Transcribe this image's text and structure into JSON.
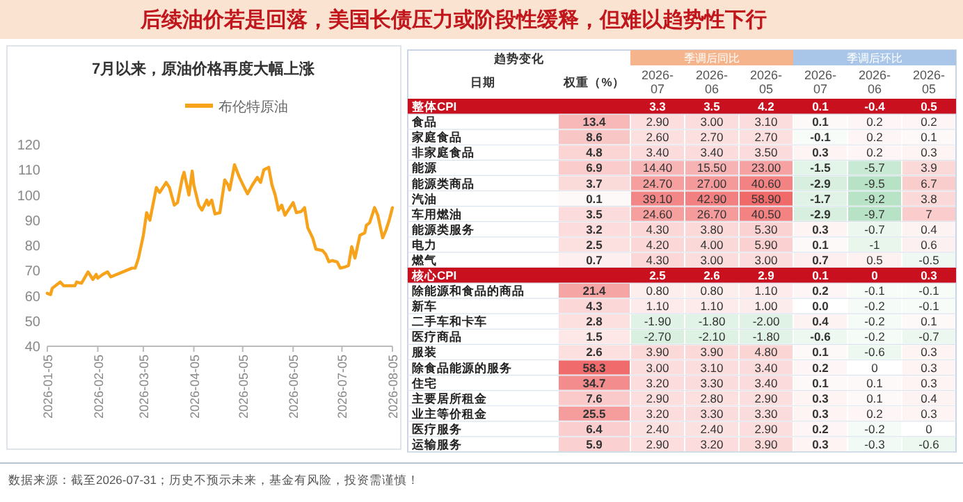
{
  "chart_data": [
    {
      "type": "line",
      "title": "后续油价若是回落，美国长债压力或阶段性缓释，但难以趋势性下行",
      "subtitle": "7月以来，原油价格再度大幅上涨",
      "annotations": [
        "数据来源：截至2026-07-31；历史不预示未来，基金有风险，投资需谨慎！"
      ],
      "x": [
        "2026-01-05",
        "2026-01-07",
        "2026-01-08",
        "2026-01-13",
        "2026-01-15",
        "2026-01-22",
        "2026-01-23",
        "2026-01-26",
        "2026-01-30",
        "2026-02-02",
        "2026-02-04",
        "2026-02-05",
        "2026-02-08",
        "2026-02-11",
        "2026-02-13",
        "2026-02-26",
        "2026-02-28",
        "2026-03-02",
        "2026-03-04",
        "2026-03-05",
        "2026-03-07",
        "2026-03-09",
        "2026-03-13",
        "2026-03-15",
        "2026-03-19",
        "2026-03-21",
        "2026-03-24",
        "2026-03-26",
        "2026-03-29",
        "2026-03-30",
        "2026-04-02",
        "2026-04-04",
        "2026-04-05",
        "2026-04-08",
        "2026-04-10",
        "2026-04-13",
        "2026-04-14",
        "2026-04-16",
        "2026-04-18",
        "2026-04-21",
        "2026-04-24",
        "2026-04-26",
        "2026-04-27",
        "2026-04-30",
        "2026-05-03",
        "2026-05-06",
        "2026-05-08",
        "2026-05-11",
        "2026-05-14",
        "2026-05-16",
        "2026-05-18",
        "2026-05-21",
        "2026-05-23",
        "2026-05-25",
        "2026-05-27",
        "2026-05-29",
        "2026-05-31",
        "2026-06-05",
        "2026-06-07",
        "2026-06-10",
        "2026-06-12",
        "2026-06-14",
        "2026-06-17",
        "2026-06-19",
        "2026-06-23",
        "2026-06-25",
        "2026-06-27",
        "2026-06-29",
        "2026-07-02",
        "2026-07-04",
        "2026-07-07",
        "2026-07-09",
        "2026-07-11",
        "2026-07-13",
        "2026-07-16",
        "2026-07-19",
        "2026-07-20",
        "2026-07-22",
        "2026-07-25",
        "2026-07-27",
        "2026-07-30",
        "2026-08-01",
        "2026-08-03",
        "2026-08-05"
      ],
      "series": [
        {
          "name": "布伦特原油",
          "color": "#f7a21b",
          "values": [
            61,
            60.5,
            63,
            65.5,
            64,
            64,
            65.5,
            65,
            69.5,
            66.5,
            68.5,
            67,
            68.5,
            69.5,
            67.5,
            71,
            71,
            75,
            81,
            84,
            93,
            90,
            103,
            101,
            105,
            103,
            96,
            97,
            107,
            109,
            100,
            109.5,
            104,
            96,
            94,
            98,
            96,
            98,
            92.5,
            93,
            106,
            104,
            102,
            112,
            107,
            103,
            100.5,
            104,
            107,
            105,
            110,
            111,
            104,
            100,
            94,
            96,
            92,
            97,
            93,
            93.5,
            95,
            87,
            83,
            78.5,
            78,
            76.5,
            73.5,
            74,
            73.5,
            71,
            71.5,
            72,
            79.5,
            75,
            84,
            85,
            88,
            89,
            95,
            92,
            83,
            86,
            90,
            95
          ]
        }
      ],
      "xlim": [
        "2026-01-05",
        "2026-08-05"
      ],
      "xticks": [
        "2026-01-05",
        "2026-02-05",
        "2026-03-05",
        "2026-04-05",
        "2026-05-05",
        "2026-06-05",
        "2026-07-05",
        "2026-08-05"
      ],
      "ylim": [
        40,
        120
      ],
      "yticks": [
        40,
        50,
        60,
        70,
        80,
        90,
        100,
        110,
        120
      ],
      "legend": "top"
    },
    {
      "type": "heatmap",
      "annotations": [
        "趋势变化",
        "日期",
        "季调后同比",
        "季调后环比"
      ],
      "categories": [
        "权重（%）",
        "2026-07",
        "2026-06",
        "2026-05",
        "2026-07",
        "2026-06",
        "2026-05"
      ],
      "y_categories": [
        "整体CPI",
        "食品",
        "家庭食品",
        "非家庭食品",
        "能源",
        "能源类商品",
        "汽油",
        "车用燃油",
        "能源类服务",
        "电力",
        "燃气",
        "核心CPI",
        "除能源和食品的商品",
        "新车",
        "二手车和卡车",
        "医疗商品",
        "服装",
        "除食品能源的服务",
        "住宅",
        "主要居所租金",
        "业主等价租金",
        "医疗服务",
        "运输服务"
      ],
      "cells": [
        [
          null,
          3.3,
          3.5,
          4.2,
          0.1,
          -0.4,
          0.5
        ],
        [
          13.4,
          2.9,
          3.0,
          3.1,
          0.1,
          0.2,
          0.2
        ],
        [
          8.6,
          2.6,
          2.7,
          2.7,
          -0.1,
          0.2,
          0.1
        ],
        [
          4.8,
          3.4,
          3.4,
          3.5,
          0.3,
          0.2,
          0.3
        ],
        [
          6.9,
          14.4,
          15.5,
          23.0,
          -1.5,
          -5.7,
          3.9
        ],
        [
          3.7,
          24.7,
          27.0,
          40.6,
          -2.9,
          -9.5,
          6.7
        ],
        [
          0.1,
          39.1,
          42.9,
          58.9,
          -1.7,
          -9.2,
          3.8
        ],
        [
          3.5,
          24.6,
          26.7,
          40.5,
          -2.9,
          -9.7,
          7
        ],
        [
          3.2,
          4.3,
          3.8,
          5.3,
          0.3,
          -0.7,
          0.4
        ],
        [
          2.5,
          4.2,
          4.0,
          5.9,
          0.1,
          -1,
          0.6
        ],
        [
          0.7,
          4.3,
          3.0,
          3.0,
          0.7,
          0.5,
          -0.5
        ],
        [
          null,
          2.5,
          2.6,
          2.9,
          0.1,
          0,
          0.3
        ],
        [
          21.4,
          0.8,
          0.8,
          1.1,
          0.2,
          -0.1,
          -0.1
        ],
        [
          4.3,
          1.1,
          1.1,
          1.0,
          0.0,
          -0.2,
          -0.1
        ],
        [
          2.8,
          -1.9,
          -1.8,
          -2.0,
          0.4,
          -0.2,
          0.1
        ],
        [
          1.5,
          -2.7,
          -2.1,
          -1.8,
          -0.6,
          -0.2,
          -0.7
        ],
        [
          2.6,
          3.9,
          3.9,
          4.8,
          0.1,
          -0.6,
          0.3
        ],
        [
          58.3,
          3.0,
          3.1,
          3.4,
          0.2,
          0,
          0.3
        ],
        [
          34.7,
          3.2,
          3.3,
          3.4,
          0.1,
          0.1,
          0.3
        ],
        [
          7.6,
          2.9,
          2.8,
          2.9,
          0.3,
          0.1,
          0.4
        ],
        [
          25.5,
          3.2,
          3.3,
          3.3,
          0.3,
          0.2,
          0.3
        ],
        [
          6.4,
          2.4,
          2.4,
          2.9,
          0.2,
          -0.2,
          0
        ],
        [
          5.9,
          2.9,
          3.2,
          3.9,
          0.3,
          -0.3,
          -0.6
        ]
      ],
      "cell_labels": [
        [
          null,
          "3.3",
          "3.5",
          "4.2",
          "0.1",
          "-0.4",
          "0.5"
        ],
        [
          "13.4",
          "2.90",
          "3.00",
          "3.10",
          "0.1",
          "0.2",
          "0.2"
        ],
        [
          "8.6",
          "2.60",
          "2.70",
          "2.70",
          "-0.1",
          "0.2",
          "0.1"
        ],
        [
          "4.8",
          "3.40",
          "3.40",
          "3.50",
          "0.3",
          "0.2",
          "0.3"
        ],
        [
          "6.9",
          "14.40",
          "15.50",
          "23.00",
          "-1.5",
          "-5.7",
          "3.9"
        ],
        [
          "3.7",
          "24.70",
          "27.00",
          "40.60",
          "-2.9",
          "-9.5",
          "6.7"
        ],
        [
          "0.1",
          "39.10",
          "42.90",
          "58.90",
          "-1.7",
          "-9.2",
          "3.8"
        ],
        [
          "3.5",
          "24.60",
          "26.70",
          "40.50",
          "-2.9",
          "-9.7",
          "7"
        ],
        [
          "3.2",
          "4.30",
          "3.80",
          "5.30",
          "0.3",
          "-0.7",
          "0.4"
        ],
        [
          "2.5",
          "4.20",
          "4.00",
          "5.90",
          "0.1",
          "-1",
          "0.6"
        ],
        [
          "0.7",
          "4.30",
          "3.00",
          "3.00",
          "0.7",
          "0.5",
          "-0.5"
        ],
        [
          null,
          "2.5",
          "2.6",
          "2.9",
          "0.1",
          "0",
          "0.3"
        ],
        [
          "21.4",
          "0.80",
          "0.80",
          "1.10",
          "0.2",
          "-0.1",
          "-0.1"
        ],
        [
          "4.3",
          "1.10",
          "1.10",
          "1.00",
          "0.0",
          "-0.2",
          "-0.1"
        ],
        [
          "2.8",
          "-1.90",
          "-1.80",
          "-2.00",
          "0.4",
          "-0.2",
          "0.1"
        ],
        [
          "1.5",
          "-2.70",
          "-2.10",
          "-1.80",
          "-0.6",
          "-0.2",
          "-0.7"
        ],
        [
          "2.6",
          "3.90",
          "3.90",
          "4.80",
          "0.1",
          "-0.6",
          "0.3"
        ],
        [
          "58.3",
          "3.00",
          "3.10",
          "3.40",
          "0.2",
          "0",
          "0.3"
        ],
        [
          "34.7",
          "3.20",
          "3.30",
          "3.40",
          "0.1",
          "0.1",
          "0.3"
        ],
        [
          "7.6",
          "2.90",
          "2.80",
          "2.90",
          "0.3",
          "0.1",
          "0.4"
        ],
        [
          "25.5",
          "3.20",
          "3.30",
          "3.30",
          "0.3",
          "0.2",
          "0.3"
        ],
        [
          "6.4",
          "2.40",
          "2.40",
          "2.90",
          "0.2",
          "-0.2",
          "0"
        ],
        [
          "5.9",
          "2.90",
          "3.20",
          "3.90",
          "0.3",
          "-0.3",
          "-0.6"
        ]
      ]
    }
  ]
}
